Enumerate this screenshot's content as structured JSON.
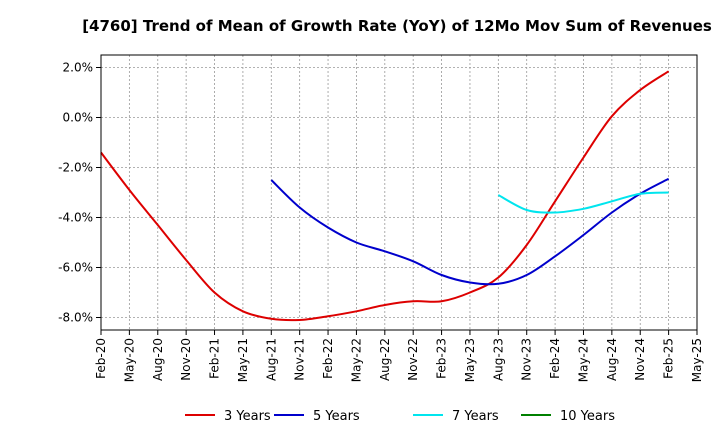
{
  "chart_data": {
    "type": "line",
    "title": "[4760]  Trend of Mean of Growth Rate (YoY) of 12Mo Mov Sum of Revenues",
    "xlabel": "",
    "ylabel": "",
    "categories": [
      "Feb-20",
      "May-20",
      "Aug-20",
      "Nov-20",
      "Feb-21",
      "May-21",
      "Aug-21",
      "Nov-21",
      "Feb-22",
      "May-22",
      "Aug-22",
      "Nov-22",
      "Feb-23",
      "May-23",
      "Aug-23",
      "Nov-23",
      "Feb-24",
      "May-24",
      "Aug-24",
      "Nov-24",
      "Feb-25",
      "May-25"
    ],
    "y_ticks": [
      -8.0,
      -6.0,
      -4.0,
      -2.0,
      0.0,
      2.0
    ],
    "y_tick_labels": [
      "-8.0%",
      "-6.0%",
      "-4.0%",
      "-2.0%",
      "0.0%",
      "2.0%"
    ],
    "ylim": [
      -8.5,
      2.5
    ],
    "grid": true,
    "legend_position": "bottom",
    "series": [
      {
        "name": "3 Years",
        "color": "#dd0000",
        "values": [
          -1.4,
          -2.9,
          -4.3,
          -5.7,
          -7.0,
          -7.75,
          -8.05,
          -8.1,
          -7.95,
          -7.75,
          -7.5,
          -7.35,
          -7.35,
          -7.0,
          -6.4,
          -5.1,
          -3.35,
          -1.6,
          0.05,
          1.1,
          1.85,
          null
        ]
      },
      {
        "name": "5 Years",
        "color": "#0000cc",
        "values": [
          null,
          null,
          null,
          null,
          null,
          null,
          -2.5,
          -3.6,
          -4.4,
          -5.0,
          -5.35,
          -5.75,
          -6.3,
          -6.6,
          -6.65,
          -6.3,
          -5.55,
          -4.7,
          -3.8,
          -3.05,
          -2.45,
          null
        ]
      },
      {
        "name": "7 Years",
        "color": "#00e5ee",
        "values": [
          null,
          null,
          null,
          null,
          null,
          null,
          null,
          null,
          null,
          null,
          null,
          null,
          null,
          null,
          -3.1,
          -3.7,
          -3.8,
          -3.65,
          -3.35,
          -3.05,
          -3.0,
          null
        ]
      },
      {
        "name": "10 Years",
        "color": "#008000",
        "values": [
          null,
          null,
          null,
          null,
          null,
          null,
          null,
          null,
          null,
          null,
          null,
          null,
          null,
          null,
          null,
          null,
          null,
          null,
          null,
          null,
          null,
          null
        ]
      }
    ]
  }
}
